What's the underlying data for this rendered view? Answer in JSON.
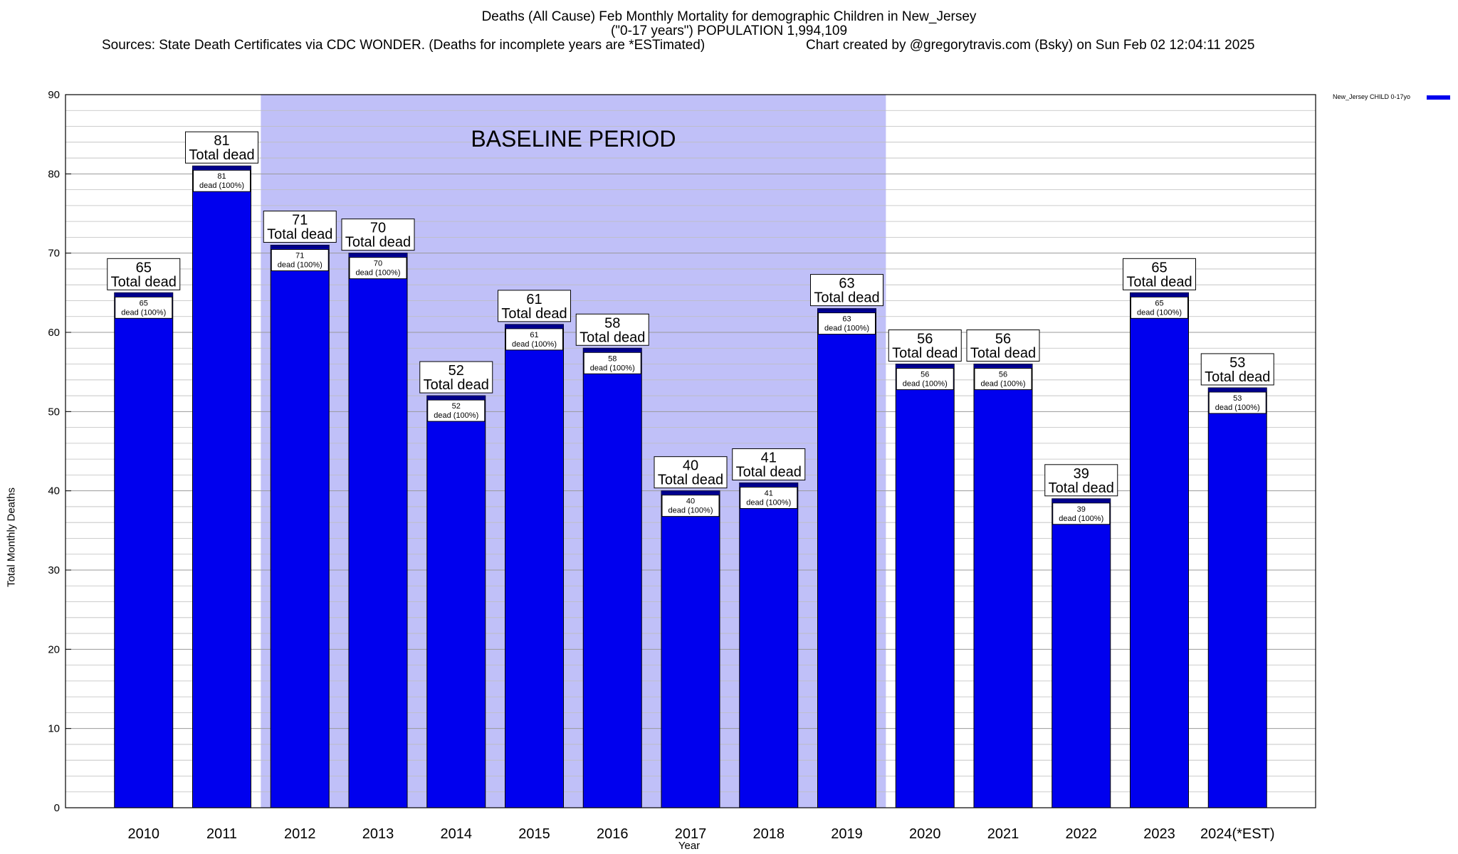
{
  "title_lines": [
    "Deaths (All Cause) Feb Monthly Mortality for demographic Children in New_Jersey",
    "(\"0-17 years\") POPULATION 1,994,109"
  ],
  "sources_text": "Sources: State Death Certificates via CDC WONDER. (Deaths for incomplete years are *ESTimated)",
  "credit_text": "Chart created by @gregorytravis.com (Bsky) on Sun Feb 02 12:04:11 2025",
  "legend_label": "New_Jersey CHILD 0-17yo",
  "colors": {
    "bar": "#0000ee",
    "baseline": "#c0c0f8",
    "bar_top": "#00008a"
  },
  "chart_data": {
    "type": "bar",
    "title": "Deaths (All Cause) Feb Monthly Mortality for demographic Children in New_Jersey",
    "xlabel": "Year",
    "ylabel": "Total Monthly Deaths",
    "ylim": [
      0,
      90
    ],
    "yticks": [
      0,
      10,
      20,
      30,
      40,
      50,
      60,
      70,
      80,
      90
    ],
    "grid": true,
    "legend_position": "top-right",
    "categories": [
      "2010",
      "2011",
      "2012",
      "2013",
      "2014",
      "2015",
      "2016",
      "2017",
      "2018",
      "2019",
      "2020",
      "2021",
      "2022",
      "2023",
      "2024(*EST)"
    ],
    "series": [
      {
        "name": "New_Jersey CHILD 0-17yo",
        "values": [
          65,
          81,
          71,
          70,
          52,
          61,
          58,
          40,
          41,
          63,
          56,
          56,
          39,
          65,
          53
        ]
      }
    ],
    "total_label": "Total dead",
    "inner_label": "dead (100%)",
    "annotation": {
      "text": "BASELINE PERIOD",
      "start_category": "2012",
      "end_category": "2019"
    }
  }
}
